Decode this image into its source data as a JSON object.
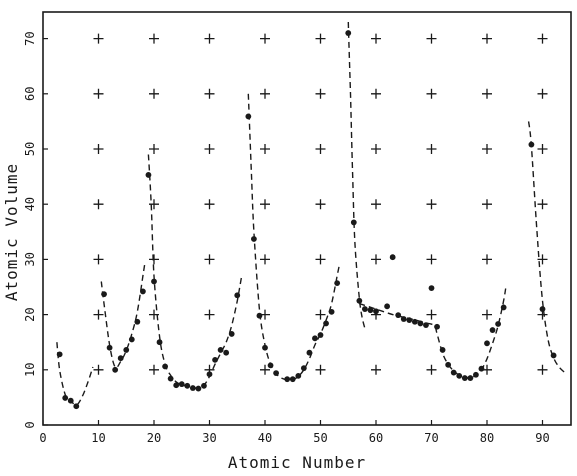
{
  "chart_data": {
    "type": "scatter",
    "title": "",
    "xlabel": "Atomic Number",
    "ylabel": "Atomic Volume",
    "xlim": [
      0,
      95
    ],
    "ylim": [
      0,
      75
    ],
    "xticks": [
      "0",
      "10",
      "20",
      "30",
      "40",
      "50",
      "60",
      "70",
      "80",
      "90"
    ],
    "yticks": [
      "0",
      "10",
      "20",
      "30",
      "40",
      "50",
      "60",
      "70"
    ],
    "grid": "plus-marks",
    "points": [
      {
        "x": 3,
        "y": 12.8
      },
      {
        "x": 4,
        "y": 4.9
      },
      {
        "x": 5,
        "y": 4.4
      },
      {
        "x": 6,
        "y": 3.4
      },
      {
        "x": 11,
        "y": 23.7
      },
      {
        "x": 12,
        "y": 14.0
      },
      {
        "x": 13,
        "y": 10.0
      },
      {
        "x": 14,
        "y": 12.1
      },
      {
        "x": 15,
        "y": 13.6
      },
      {
        "x": 16,
        "y": 15.5
      },
      {
        "x": 17,
        "y": 18.7
      },
      {
        "x": 18,
        "y": 24.2
      },
      {
        "x": 19,
        "y": 45.3
      },
      {
        "x": 20,
        "y": 26.0
      },
      {
        "x": 21,
        "y": 15.0
      },
      {
        "x": 22,
        "y": 10.6
      },
      {
        "x": 23,
        "y": 8.4
      },
      {
        "x": 24,
        "y": 7.2
      },
      {
        "x": 25,
        "y": 7.4
      },
      {
        "x": 26,
        "y": 7.1
      },
      {
        "x": 27,
        "y": 6.7
      },
      {
        "x": 28,
        "y": 6.6
      },
      {
        "x": 29,
        "y": 7.1
      },
      {
        "x": 30,
        "y": 9.2
      },
      {
        "x": 31,
        "y": 11.8
      },
      {
        "x": 32,
        "y": 13.6
      },
      {
        "x": 33,
        "y": 13.1
      },
      {
        "x": 34,
        "y": 16.5
      },
      {
        "x": 35,
        "y": 23.5
      },
      {
        "x": 37,
        "y": 55.9
      },
      {
        "x": 38,
        "y": 33.7
      },
      {
        "x": 39,
        "y": 19.8
      },
      {
        "x": 40,
        "y": 14.0
      },
      {
        "x": 41,
        "y": 10.8
      },
      {
        "x": 42,
        "y": 9.4
      },
      {
        "x": 44,
        "y": 8.3
      },
      {
        "x": 45,
        "y": 8.3
      },
      {
        "x": 46,
        "y": 8.9
      },
      {
        "x": 47,
        "y": 10.3
      },
      {
        "x": 48,
        "y": 13.1
      },
      {
        "x": 49,
        "y": 15.7
      },
      {
        "x": 50,
        "y": 16.3
      },
      {
        "x": 51,
        "y": 18.4
      },
      {
        "x": 52,
        "y": 20.5
      },
      {
        "x": 53,
        "y": 25.7
      },
      {
        "x": 55,
        "y": 71.0
      },
      {
        "x": 56,
        "y": 36.7
      },
      {
        "x": 57,
        "y": 22.5
      },
      {
        "x": 58,
        "y": 21.0
      },
      {
        "x": 59,
        "y": 20.8
      },
      {
        "x": 60,
        "y": 20.6
      },
      {
        "x": 62,
        "y": 21.5
      },
      {
        "x": 63,
        "y": 30.4
      },
      {
        "x": 64,
        "y": 19.9
      },
      {
        "x": 65,
        "y": 19.2
      },
      {
        "x": 66,
        "y": 19.0
      },
      {
        "x": 67,
        "y": 18.7
      },
      {
        "x": 68,
        "y": 18.4
      },
      {
        "x": 69,
        "y": 18.1
      },
      {
        "x": 70,
        "y": 24.8
      },
      {
        "x": 71,
        "y": 17.8
      },
      {
        "x": 72,
        "y": 13.6
      },
      {
        "x": 73,
        "y": 10.9
      },
      {
        "x": 74,
        "y": 9.5
      },
      {
        "x": 75,
        "y": 8.9
      },
      {
        "x": 76,
        "y": 8.5
      },
      {
        "x": 77,
        "y": 8.5
      },
      {
        "x": 78,
        "y": 9.1
      },
      {
        "x": 79,
        "y": 10.2
      },
      {
        "x": 80,
        "y": 14.8
      },
      {
        "x": 81,
        "y": 17.2
      },
      {
        "x": 82,
        "y": 18.3
      },
      {
        "x": 83,
        "y": 21.3
      },
      {
        "x": 88,
        "y": 50.8
      },
      {
        "x": 90,
        "y": 21.0
      },
      {
        "x": 92,
        "y": 12.6
      }
    ],
    "curve_segments": [
      [
        [
          2.5,
          15.0
        ],
        [
          3.0,
          10.0
        ],
        [
          4.0,
          5.5
        ],
        [
          5.0,
          4.4
        ],
        [
          6.0,
          3.6
        ],
        [
          7.0,
          5.0
        ],
        [
          8.0,
          7.5
        ],
        [
          9.0,
          10.5
        ]
      ],
      [
        [
          10.5,
          26.0
        ],
        [
          11.0,
          22.0
        ],
        [
          12.0,
          14.5
        ],
        [
          13.0,
          10.5
        ],
        [
          14.0,
          11.5
        ],
        [
          15.0,
          13.5
        ],
        [
          16.0,
          16.5
        ],
        [
          17.0,
          20.5
        ],
        [
          18.0,
          27.0
        ],
        [
          18.3,
          29.0
        ]
      ],
      [
        [
          19.0,
          49.0
        ],
        [
          19.5,
          40.0
        ],
        [
          20.0,
          27.0
        ],
        [
          21.0,
          16.0
        ],
        [
          22.0,
          11.0
        ],
        [
          23.0,
          9.0
        ],
        [
          24.0,
          7.8
        ],
        [
          25.0,
          7.3
        ],
        [
          26.0,
          7.0
        ],
        [
          27.0,
          6.8
        ],
        [
          28.0,
          6.7
        ],
        [
          29.0,
          7.2
        ],
        [
          30.0,
          8.8
        ],
        [
          31.0,
          11.0
        ],
        [
          32.0,
          13.0
        ],
        [
          33.0,
          15.0
        ],
        [
          34.0,
          18.0
        ],
        [
          35.0,
          22.5
        ],
        [
          35.8,
          27.0
        ]
      ],
      [
        [
          37.0,
          60.0
        ],
        [
          37.5,
          47.0
        ],
        [
          38.0,
          35.0
        ],
        [
          39.0,
          21.0
        ],
        [
          40.0,
          14.5
        ],
        [
          41.0,
          11.0
        ],
        [
          42.0,
          9.3
        ],
        [
          43.0,
          8.5
        ],
        [
          44.0,
          8.2
        ],
        [
          45.0,
          8.2
        ],
        [
          46.0,
          8.8
        ],
        [
          47.0,
          10.0
        ],
        [
          48.0,
          12.0
        ],
        [
          49.0,
          14.5
        ],
        [
          50.0,
          16.5
        ],
        [
          51.0,
          19.0
        ],
        [
          52.0,
          22.0
        ],
        [
          53.0,
          27.0
        ],
        [
          53.4,
          29.0
        ]
      ],
      [
        [
          55.0,
          73.0
        ],
        [
          55.4,
          60.0
        ],
        [
          55.8,
          45.0
        ],
        [
          56.2,
          33.0
        ],
        [
          57.0,
          23.0
        ],
        [
          57.5,
          19.5
        ],
        [
          58.0,
          17.5
        ]
      ],
      [
        [
          57.0,
          22.0
        ],
        [
          60.0,
          21.0
        ],
        [
          63.0,
          20.0
        ],
        [
          66.0,
          19.3
        ],
        [
          69.0,
          18.5
        ],
        [
          70.5,
          18.0
        ],
        [
          71.0,
          16.5
        ],
        [
          72.0,
          13.0
        ],
        [
          73.0,
          11.0
        ],
        [
          74.0,
          9.8
        ],
        [
          75.0,
          9.0
        ],
        [
          76.0,
          8.6
        ],
        [
          77.0,
          8.6
        ],
        [
          78.0,
          9.0
        ],
        [
          79.0,
          10.0
        ],
        [
          80.0,
          12.0
        ],
        [
          81.0,
          14.8
        ],
        [
          82.0,
          18.0
        ],
        [
          83.0,
          22.5
        ],
        [
          83.4,
          25.0
        ]
      ],
      [
        [
          87.5,
          55.0
        ],
        [
          88.0,
          50.5
        ],
        [
          89.0,
          35.0
        ],
        [
          90.0,
          22.5
        ],
        [
          91.0,
          15.5
        ],
        [
          92.0,
          12.2
        ],
        [
          93.0,
          10.5
        ],
        [
          94.0,
          9.5
        ]
      ]
    ],
    "colors": {
      "ink": "#1a1a1a",
      "background": "#ffffff"
    }
  }
}
